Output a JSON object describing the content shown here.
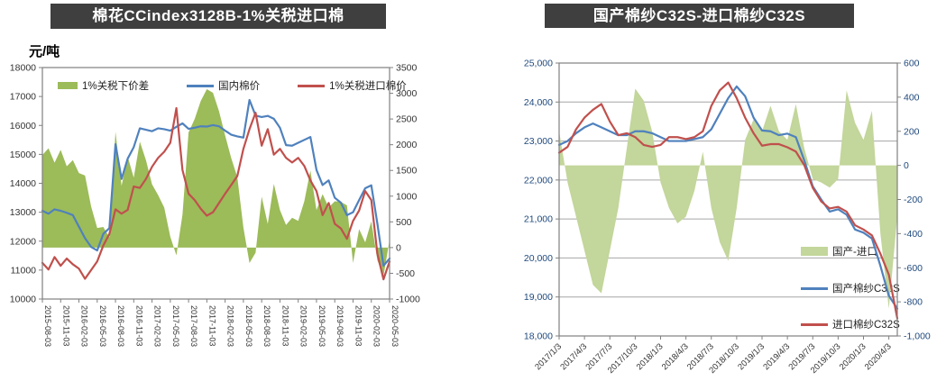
{
  "page": {
    "background": "#ffffff",
    "title_bar_color": "#3F3F3F",
    "title_text_color": "#ffffff"
  },
  "chart_data": [
    {
      "type": "combo-area-line",
      "title": "棉花CCindex3128B-1%关税进口棉",
      "ylabel_left": "元/吨",
      "grid": false,
      "legend_position": "top-inline",
      "frame_color": "#808080",
      "grid_color": "#A6A6A6",
      "tick_label_color": "#333333",
      "xtick_label_color": "#333333",
      "ylim_left": [
        10000,
        18000
      ],
      "ylim_right": [
        -1000,
        3500
      ],
      "yticks_left": {
        "values": [
          18000,
          17000,
          16000,
          15000,
          14000,
          13000,
          12000,
          11000,
          10000
        ],
        "labels": [
          "18000",
          "17000",
          "16000",
          "15000",
          "14000",
          "13000",
          "12000",
          "11000",
          "10000"
        ]
      },
      "yticks_right": {
        "values": [
          3500,
          3000,
          2500,
          2000,
          1500,
          1000,
          500,
          0,
          -500,
          -1000
        ],
        "labels": [
          "3500",
          "3000",
          "2500",
          "2000",
          "1500",
          "1000",
          "500",
          "0",
          "-500",
          "-1000"
        ]
      },
      "categories": [
        "2015-08",
        "2015-09",
        "2015-10",
        "2015-11",
        "2015-12",
        "2016-01",
        "2016-02",
        "2016-03",
        "2016-04",
        "2016-05",
        "2016-06",
        "2016-07",
        "2016-08",
        "2016-09",
        "2016-10",
        "2016-11",
        "2016-12",
        "2017-01",
        "2017-02",
        "2017-03",
        "2017-04",
        "2017-05",
        "2017-06",
        "2017-07",
        "2017-08",
        "2017-09",
        "2017-10",
        "2017-11",
        "2017-12",
        "2018-01",
        "2018-02",
        "2018-03",
        "2018-04",
        "2018-05",
        "2018-06",
        "2018-07",
        "2018-08",
        "2018-09",
        "2018-10",
        "2018-11",
        "2018-12",
        "2019-01",
        "2019-02",
        "2019-03",
        "2019-04",
        "2019-05",
        "2019-06",
        "2019-07",
        "2019-08",
        "2019-09",
        "2019-10",
        "2019-11",
        "2019-12",
        "2020-01",
        "2020-02",
        "2020-03",
        "2020-04",
        "2020-05"
      ],
      "x_ticklabels": [
        "2015-08-03",
        "2015-11-03",
        "2016-02-03",
        "2016-05-03",
        "2016-08-03",
        "2016-11-03",
        "2017-02-03",
        "2017-05-03",
        "2017-08-03",
        "2017-11-03",
        "2018-02-03",
        "2018-05-03",
        "2018-08-03",
        "2018-11-03",
        "2019-02-03",
        "2019-05-03",
        "2019-08-03",
        "2019-11-03",
        "2020-02-03",
        "2020-05-03"
      ],
      "x_tick_step": 3,
      "series": [
        {
          "name": "1%关税下价差",
          "render": "area",
          "axis": "right",
          "color": "#9CBB59",
          "values": [
            1800,
            1930,
            1650,
            1900,
            1580,
            1700,
            1450,
            1400,
            800,
            380,
            400,
            200,
            2250,
            1200,
            1770,
            1360,
            2060,
            1700,
            1230,
            1020,
            780,
            210,
            -150,
            640,
            2240,
            2500,
            2850,
            3080,
            3010,
            2650,
            2180,
            1740,
            1370,
            390,
            -300,
            -100,
            990,
            460,
            1240,
            730,
            440,
            580,
            520,
            900,
            1500,
            730,
            1040,
            780,
            900,
            890,
            820,
            -300,
            360,
            100,
            510,
            -250,
            -550,
            150
          ]
        },
        {
          "name": "国内棉价",
          "render": "line",
          "axis": "left",
          "color": "#4F81BD",
          "values": [
            13050,
            12950,
            13100,
            13050,
            12980,
            12900,
            12500,
            12100,
            11800,
            11680,
            12250,
            12450,
            15350,
            14150,
            14850,
            15250,
            15900,
            15850,
            15800,
            15900,
            15870,
            15820,
            15950,
            16070,
            15880,
            15920,
            15970,
            15960,
            16010,
            15970,
            15820,
            15680,
            15620,
            15580,
            16880,
            16340,
            16290,
            16330,
            16230,
            15920,
            15320,
            15300,
            15400,
            15500,
            15600,
            14460,
            13940,
            14100,
            13500,
            13330,
            12900,
            13000,
            13420,
            13830,
            13930,
            12600,
            11150,
            11400
          ]
        },
        {
          "name": "1%关税进口棉价",
          "render": "line",
          "axis": "left",
          "color": "#C0504D",
          "values": [
            11250,
            11020,
            11450,
            11150,
            11400,
            11200,
            11050,
            10700,
            11000,
            11300,
            11850,
            12250,
            13100,
            12950,
            13080,
            13890,
            13840,
            14150,
            14570,
            14880,
            15090,
            15400,
            16600,
            14460,
            13640,
            13420,
            13120,
            12880,
            13000,
            13320,
            13640,
            13940,
            14250,
            15190,
            15870,
            16440,
            15300,
            15870,
            14990,
            15190,
            14880,
            14720,
            14880,
            14600,
            14100,
            13730,
            12900,
            13320,
            12600,
            12440,
            12080,
            12700,
            13060,
            13730,
            13420,
            11560,
            10680,
            11300
          ]
        }
      ]
    },
    {
      "type": "combo-area-line",
      "title": "国产棉纱C32S-进口棉纱C32S",
      "ylabel_left": "",
      "grid": true,
      "legend_position": "bottom-right-stacked",
      "frame_color": "#808080",
      "grid_color": "#A6A6A6",
      "tick_label_color": "#1F497D",
      "xtick_label_color": "#333333",
      "ylim_left": [
        18000,
        25000
      ],
      "ylim_right": [
        -1000,
        600
      ],
      "yticks_left": {
        "values": [
          25000,
          24000,
          23000,
          22000,
          21000,
          20000,
          19000,
          18000
        ],
        "labels": [
          "25,000",
          "24,000",
          "23,000",
          "22,000",
          "21,000",
          "20,000",
          "19,000",
          "18,000"
        ]
      },
      "yticks_right": {
        "values": [
          600,
          400,
          200,
          0,
          -200,
          -400,
          -600,
          -800,
          -1000
        ],
        "labels": [
          "600",
          "400",
          "200",
          "0",
          "-200",
          "-400",
          "-600",
          "-800",
          "-1,000"
        ]
      },
      "categories": [
        "2017-01",
        "2017-02",
        "2017-03",
        "2017-04",
        "2017-05",
        "2017-06",
        "2017-07",
        "2017-08",
        "2017-09",
        "2017-10",
        "2017-11",
        "2017-12",
        "2018-01",
        "2018-02",
        "2018-03",
        "2018-04",
        "2018-05",
        "2018-06",
        "2018-07",
        "2018-08",
        "2018-09",
        "2018-10",
        "2018-11",
        "2018-12",
        "2019-01",
        "2019-02",
        "2019-03",
        "2019-04",
        "2019-05",
        "2019-06",
        "2019-07",
        "2019-08",
        "2019-09",
        "2019-10",
        "2019-11",
        "2019-12",
        "2020-01",
        "2020-02",
        "2020-03",
        "2020-04",
        "2020-05"
      ],
      "x_ticklabels": [
        "2017/1/3",
        "2017/4/3",
        "2017/7/3",
        "2017/10/3",
        "2018/1/3",
        "2018/4/3",
        "2018/7/3",
        "2018/10/3",
        "2019/1/3",
        "2019/4/3",
        "2019/7/3",
        "2019/10/3",
        "2020/1/3",
        "2020/4/3"
      ],
      "x_tick_step": 3,
      "series": [
        {
          "name": "国产-进口",
          "render": "area",
          "axis": "right",
          "color": "#C3D69B",
          "values": [
            200,
            -100,
            -300,
            -500,
            -700,
            -750,
            -500,
            -250,
            100,
            450,
            380,
            200,
            -100,
            -250,
            -340,
            -300,
            -150,
            80,
            -250,
            -450,
            -560,
            -250,
            150,
            270,
            200,
            350,
            200,
            150,
            360,
            100,
            -80,
            -100,
            -130,
            -80,
            440,
            250,
            150,
            320,
            -400,
            -840,
            -300
          ]
        },
        {
          "name": "国产棉纱C32S",
          "render": "line",
          "axis": "left",
          "color": "#4F81BD",
          "values": [
            22900,
            23000,
            23200,
            23350,
            23450,
            23350,
            23250,
            23150,
            23150,
            23250,
            23250,
            23200,
            23100,
            23000,
            23000,
            23000,
            23050,
            23100,
            23300,
            23700,
            24100,
            24400,
            24150,
            23600,
            23270,
            23250,
            23150,
            23190,
            23100,
            22500,
            21840,
            21500,
            21190,
            21250,
            21110,
            20730,
            20650,
            20500,
            19800,
            19030,
            18700
          ]
        },
        {
          "name": "进口棉纱C32S",
          "render": "line",
          "axis": "left",
          "color": "#C0504D",
          "values": [
            22700,
            22850,
            23300,
            23600,
            23800,
            23950,
            23500,
            23150,
            23200,
            23100,
            22900,
            22850,
            22900,
            23100,
            23100,
            23050,
            23100,
            23250,
            23900,
            24300,
            24500,
            24100,
            23600,
            23200,
            22880,
            22920,
            22920,
            22840,
            22730,
            22380,
            21800,
            21450,
            21270,
            21310,
            21190,
            20840,
            20730,
            20580,
            20110,
            19570,
            18450
          ]
        }
      ]
    }
  ]
}
